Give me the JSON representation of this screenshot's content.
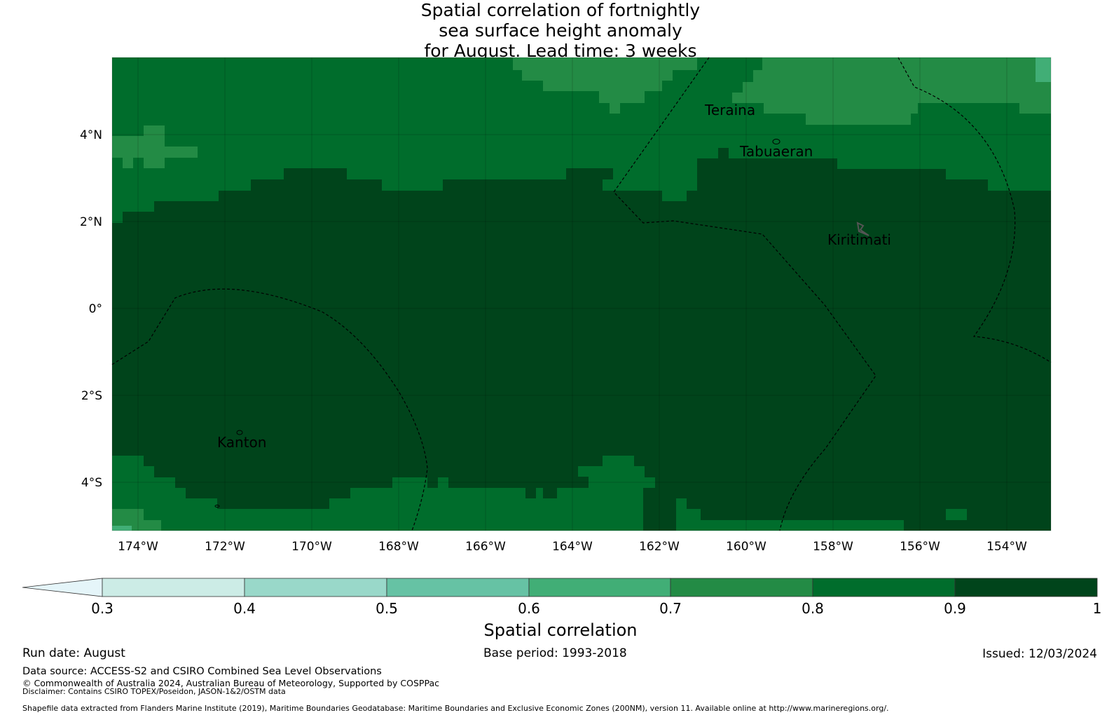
{
  "title_lines": [
    "Spatial correlation of fortnightly",
    "sea surface height anomaly",
    "for August. Lead time: 3 weeks"
  ],
  "map": {
    "lat_ticks": [
      "4°N",
      "2°N",
      "0°",
      "2°S",
      "4°S"
    ],
    "lon_ticks": [
      "174°W",
      "172°W",
      "170°W",
      "168°W",
      "166°W",
      "164°W",
      "162°W",
      "160°W",
      "158°W",
      "156°W",
      "154°W"
    ],
    "places": [
      "Teraina",
      "Tabuaeran",
      "Kiritimati",
      "Kanton"
    ],
    "colors": {
      "v0_7_0_8": "#238b45",
      "v0_8_0_9": "#006d2c",
      "v0_9_1_0": "#00441b",
      "v0_6_0_7": "#41ae76"
    }
  },
  "colorbar": {
    "label": "Spatial correlation",
    "ticks": [
      "0.3",
      "0.4",
      "0.5",
      "0.6",
      "0.7",
      "0.8",
      "0.9",
      "1"
    ],
    "colors": [
      "#e5f5f9",
      "#ccece6",
      "#99d8c9",
      "#66c2a4",
      "#41ae76",
      "#238b45",
      "#006d2c",
      "#00441b"
    ]
  },
  "footer": {
    "run_date": "Run date: August",
    "base_period": "Base period: 1993-2018",
    "issued": "Issued: 12/03/2024",
    "data_source": "Data source: ACCESS-S2 and CSIRO Combined Sea Level Observations",
    "copyright": "© Commonwealth of Australia 2024, Australian Bureau of Meteorology, Supported by COSPPac",
    "disclaimer": "Disclaimer: Contains CSIRO TOPEX/Poseidon, JASON-1&2/OSTM data",
    "shapefile": "Shapefile data extracted from Flanders Marine Institute (2019), Maritime Boundaries Geodatabase: Maritime Boundaries and Exclusive Economic Zones (200NM), version 11. Available online at http://www.marineregions.org/."
  }
}
